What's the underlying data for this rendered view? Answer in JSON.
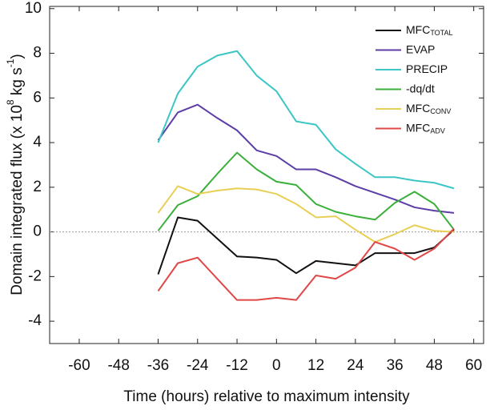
{
  "chart_data": {
    "type": "line",
    "xlabel": "Time (hours) relative to maximum intensity",
    "ylabel": [
      {
        "text": "Domain integrated flux (x 10"
      },
      {
        "text": "8",
        "sup": true
      },
      {
        "text": " kg s"
      },
      {
        "text": "-1",
        "sup": true
      },
      {
        "text": ")"
      }
    ],
    "x": [
      -36,
      -30,
      -24,
      -18,
      -12,
      -6,
      0,
      6,
      12,
      18,
      24,
      30,
      36,
      42,
      48,
      54
    ],
    "series": [
      {
        "name": "MFC",
        "subscript": "TOTAL",
        "color": "#111111",
        "values": [
          -1.9,
          0.65,
          0.5,
          -0.3,
          -1.1,
          -1.15,
          -1.25,
          -1.85,
          -1.3,
          -1.4,
          -1.5,
          -0.95,
          -0.95,
          -0.95,
          -0.7,
          0.1
        ]
      },
      {
        "name": "EVAP",
        "color": "#5b3ea6",
        "values": [
          4.1,
          5.35,
          5.7,
          5.1,
          4.55,
          3.65,
          3.4,
          2.8,
          2.8,
          2.45,
          2.05,
          1.75,
          1.45,
          1.1,
          0.95,
          0.85
        ]
      },
      {
        "name": "PRECIP",
        "color": "#3cc6c6",
        "values": [
          4.0,
          6.2,
          7.4,
          7.9,
          8.1,
          7.0,
          6.3,
          4.95,
          4.8,
          3.7,
          3.05,
          2.45,
          2.45,
          2.3,
          2.2,
          1.95
        ]
      },
      {
        "name": "-dq/dt",
        "color": "#3aaf3a",
        "values": [
          0.05,
          1.2,
          1.6,
          2.6,
          3.55,
          2.8,
          2.25,
          2.1,
          1.25,
          0.9,
          0.7,
          0.55,
          1.3,
          1.8,
          1.25,
          0.1
        ]
      },
      {
        "name": "MFC",
        "subscript": "CONV",
        "color": "#e8cf55",
        "values": [
          0.85,
          2.05,
          1.7,
          1.85,
          1.95,
          1.9,
          1.7,
          1.25,
          0.65,
          0.7,
          0.1,
          -0.45,
          -0.1,
          0.3,
          0.05,
          0.0
        ]
      },
      {
        "name": "MFC",
        "subscript": "ADV",
        "color": "#e04848",
        "values": [
          -2.65,
          -1.4,
          -1.15,
          -2.1,
          -3.05,
          -3.05,
          -2.95,
          -3.05,
          -1.95,
          -2.1,
          -1.6,
          -0.45,
          -0.75,
          -1.25,
          -0.75,
          0.15
        ]
      }
    ],
    "xlim": [
      -69,
      63
    ],
    "xticks": [
      -60,
      -48,
      -36,
      -24,
      -12,
      0,
      12,
      24,
      36,
      48,
      60
    ],
    "ylim": [
      -5,
      10.1
    ],
    "yticks": [
      -4,
      -2,
      0,
      2,
      4,
      6,
      8,
      10
    ],
    "zero_line": true,
    "legend": "upper right"
  }
}
